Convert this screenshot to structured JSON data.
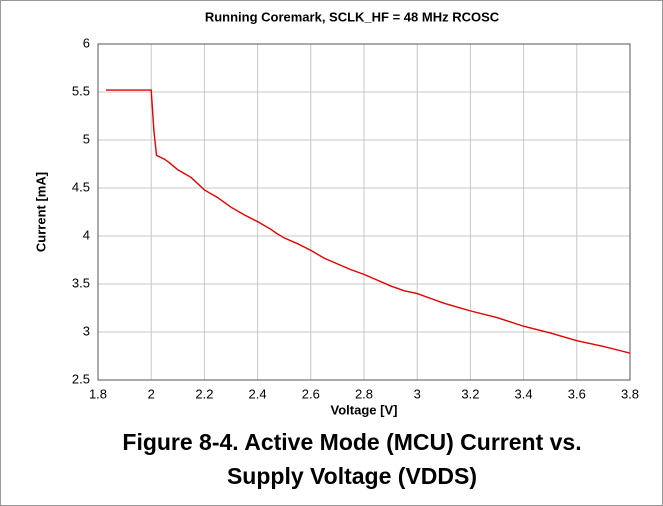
{
  "chart_data": {
    "type": "line",
    "title": "Running Coremark, SCLK_HF = 48 MHz RCOSC",
    "xlabel": "Voltage [V]",
    "ylabel": "Current [mA]",
    "caption": [
      "Figure 8-4. Active Mode (MCU) Current vs.",
      "Supply Voltage (VDDS)"
    ],
    "x": [
      1.83,
      1.9,
      2.0,
      2.01,
      2.02,
      2.05,
      2.07,
      2.1,
      2.15,
      2.2,
      2.25,
      2.3,
      2.35,
      2.4,
      2.45,
      2.47,
      2.5,
      2.55,
      2.6,
      2.65,
      2.7,
      2.75,
      2.8,
      2.85,
      2.9,
      2.95,
      3.0,
      3.05,
      3.1,
      3.15,
      3.2,
      3.3,
      3.4,
      3.5,
      3.6,
      3.7,
      3.8
    ],
    "values": [
      5.52,
      5.52,
      5.52,
      5.1,
      4.84,
      4.8,
      4.76,
      4.69,
      4.61,
      4.48,
      4.4,
      4.3,
      4.22,
      4.15,
      4.07,
      4.03,
      3.98,
      3.92,
      3.85,
      3.77,
      3.71,
      3.65,
      3.6,
      3.54,
      3.48,
      3.43,
      3.4,
      3.35,
      3.3,
      3.26,
      3.22,
      3.15,
      3.06,
      2.99,
      2.91,
      2.85,
      2.78
    ],
    "color": "#e00000",
    "xlim": [
      1.8,
      3.8
    ],
    "xticks": [
      1.8,
      2,
      2.2,
      2.4,
      2.6,
      2.8,
      3,
      3.2,
      3.4,
      3.6,
      3.8
    ],
    "ylim": [
      2.5,
      6
    ],
    "yticks": [
      2.5,
      3,
      3.5,
      4,
      4.5,
      5,
      5.5,
      6
    ],
    "grid": true
  }
}
